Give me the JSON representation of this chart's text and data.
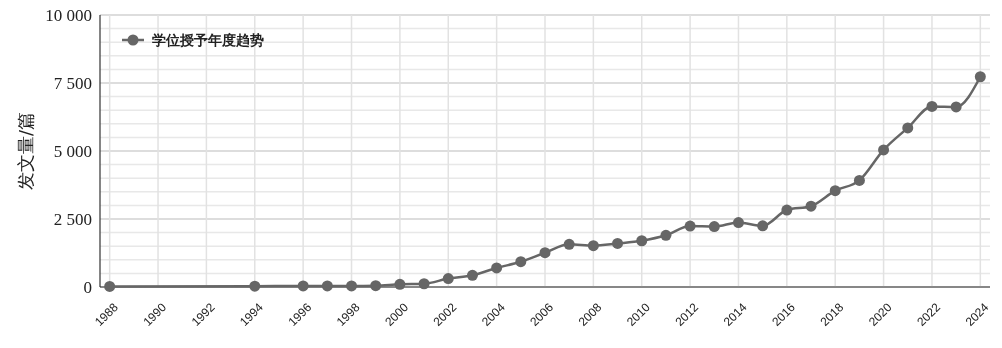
{
  "chart_data": {
    "type": "line",
    "ylabel": "发文量/篇",
    "x": [
      1988,
      1994,
      1996,
      1997,
      1998,
      1999,
      2000,
      2001,
      2002,
      2003,
      2004,
      2005,
      2006,
      2007,
      2008,
      2009,
      2010,
      2011,
      2012,
      2013,
      2014,
      2015,
      2016,
      2017,
      2018,
      2019,
      2020,
      2021,
      2022,
      2023,
      2024
    ],
    "series": [
      {
        "name": "学位授予年度趋势",
        "color": "#666666",
        "values": [
          20,
          30,
          40,
          40,
          40,
          50,
          100,
          120,
          310,
          430,
          700,
          930,
          1260,
          1570,
          1520,
          1600,
          1700,
          1900,
          2240,
          2220,
          2370,
          2250,
          2830,
          2970,
          3540,
          3920,
          5040,
          5850,
          6640,
          6620,
          7730
        ]
      }
    ],
    "xlim": [
      1987.6,
      2024.4
    ],
    "xticks": [
      1988,
      1990,
      1992,
      1994,
      1996,
      1998,
      2000,
      2002,
      2004,
      2006,
      2008,
      2010,
      2012,
      2014,
      2016,
      2018,
      2020,
      2022,
      2024
    ],
    "ylim": [
      0,
      10000
    ],
    "yticks": [
      {
        "value": 0,
        "label": "0"
      },
      {
        "value": 500,
        "label": null
      },
      {
        "value": 1000,
        "label": null
      },
      {
        "value": 1500,
        "label": null
      },
      {
        "value": 2000,
        "label": null
      },
      {
        "value": 2500,
        "label": "2 500"
      },
      {
        "value": 3000,
        "label": null
      },
      {
        "value": 3500,
        "label": null
      },
      {
        "value": 4000,
        "label": null
      },
      {
        "value": 4500,
        "label": null
      },
      {
        "value": 5000,
        "label": "5 000"
      },
      {
        "value": 5500,
        "label": null
      },
      {
        "value": 6000,
        "label": null
      },
      {
        "value": 6500,
        "label": null
      },
      {
        "value": 7000,
        "label": null
      },
      {
        "value": 7500,
        "label": "7 500"
      },
      {
        "value": 8000,
        "label": null
      },
      {
        "value": 8500,
        "label": null
      },
      {
        "value": 9000,
        "label": null
      },
      {
        "value": 9500,
        "label": null
      },
      {
        "value": 10000,
        "label": "10 000"
      }
    ],
    "grid": true,
    "legend": "top left",
    "marker": "circle",
    "line_style": "solid"
  }
}
